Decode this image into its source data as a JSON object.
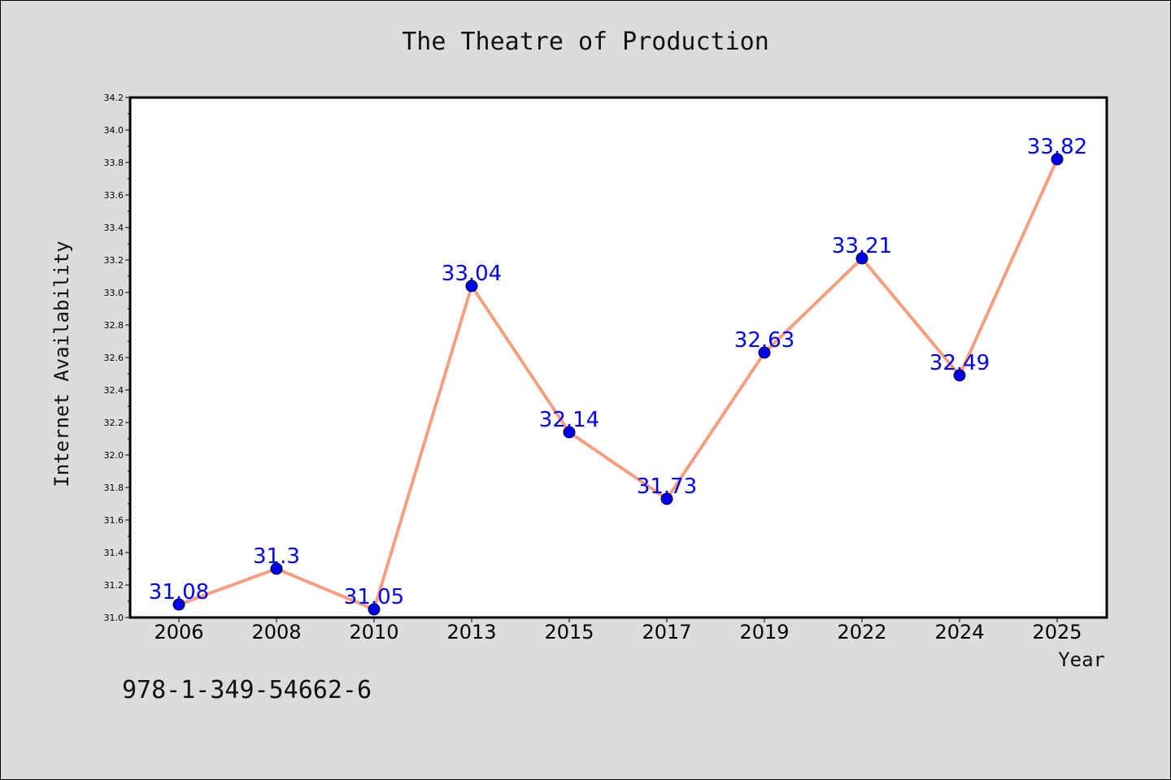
{
  "footer_text": "978-1-349-54662-6",
  "chart_data": {
    "type": "line",
    "title": "The Theatre of Production",
    "xlabel": "Year",
    "ylabel": "Internet Availability",
    "categories": [
      "2006",
      "2008",
      "2010",
      "2013",
      "2015",
      "2017",
      "2019",
      "2022",
      "2024",
      "2025"
    ],
    "values": [
      31.08,
      31.3,
      31.05,
      33.04,
      32.14,
      31.73,
      32.63,
      33.21,
      32.49,
      33.82
    ],
    "data_labels": [
      "31.08",
      "31.3",
      "31.05",
      "33.04",
      "32.14",
      "31.73",
      "32.63",
      "33.21",
      "32.49",
      "33.82"
    ],
    "ylim": [
      31.0,
      34.2
    ],
    "yticks": [
      "31.0",
      "31.2",
      "31.4",
      "31.6",
      "31.8",
      "32.0",
      "32.2",
      "32.4",
      "32.6",
      "32.8",
      "33.0",
      "33.2",
      "33.4",
      "33.6",
      "33.8",
      "34.0",
      "34.2"
    ],
    "grid": false,
    "legend": "none",
    "colors": {
      "line": "#f4a080",
      "marker": "#0000ee",
      "label": "#0000ff",
      "plot_bg": "#ffffff",
      "page_bg": "#dcdcdc"
    }
  }
}
